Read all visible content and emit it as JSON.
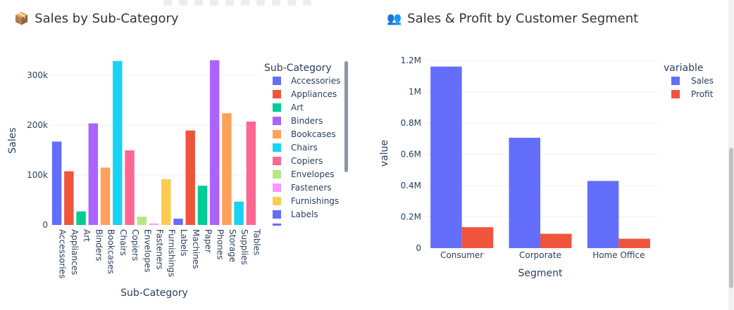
{
  "left": {
    "title": "Sales by Sub-Category",
    "icon": "package-icon",
    "icon_glyph": "📦"
  },
  "right": {
    "title": "Sales & Profit by Customer Segment",
    "icon": "people-icon",
    "icon_glyph": "👥"
  },
  "colors": {
    "palette": [
      "#636efa",
      "#EF553B",
      "#00cc96",
      "#ab63fa",
      "#FFA15A",
      "#19d3f3",
      "#FF6692",
      "#B6E880",
      "#FF97FF",
      "#FECB52"
    ],
    "sales": "#636efa",
    "profit": "#EF553B",
    "grid": "#ebf0f8",
    "scrollbar": "#8a95a5"
  },
  "chart_data": [
    {
      "type": "bar",
      "title": "Sales by Sub-Category",
      "xlabel": "Sub-Category",
      "ylabel": "Sales",
      "ylim": [
        0,
        345000
      ],
      "yticks": [
        0,
        100000,
        200000,
        300000
      ],
      "ytick_labels": [
        "0",
        "100k",
        "200k",
        "300k"
      ],
      "categories": [
        "Accessories",
        "Appliances",
        "Art",
        "Binders",
        "Bookcases",
        "Chairs",
        "Copiers",
        "Envelopes",
        "Fasteners",
        "Furnishings",
        "Labels",
        "Machines",
        "Paper",
        "Phones",
        "Storage",
        "Supplies",
        "Tables"
      ],
      "values": [
        167000,
        107500,
        27100,
        203400,
        114900,
        328400,
        149500,
        16500,
        3000,
        91700,
        12500,
        189200,
        78500,
        330000,
        223800,
        46700,
        207000
      ],
      "legend_title": "Sub-Category",
      "legend_visible": [
        "Accessories",
        "Appliances",
        "Art",
        "Binders",
        "Bookcases",
        "Chairs",
        "Copiers",
        "Envelopes",
        "Fasteners",
        "Furnishings",
        "Labels"
      ],
      "legend_position": "right",
      "grid": true
    },
    {
      "type": "bar",
      "title": "Sales & Profit by Customer Segment",
      "xlabel": "Segment",
      "ylabel": "value",
      "ylim": [
        0,
        1250000
      ],
      "yticks": [
        0,
        200000,
        400000,
        600000,
        800000,
        1000000,
        1200000
      ],
      "ytick_labels": [
        "0",
        "0.2M",
        "0.4M",
        "0.6M",
        "0.8M",
        "1M",
        "1.2M"
      ],
      "categories": [
        "Consumer",
        "Corporate",
        "Home Office"
      ],
      "series": [
        {
          "name": "Sales",
          "values": [
            1161400,
            706100,
            429700
          ]
        },
        {
          "name": "Profit",
          "values": [
            134100,
            91900,
            60300
          ]
        }
      ],
      "legend_title": "variable",
      "legend_position": "right",
      "grid": true
    }
  ]
}
